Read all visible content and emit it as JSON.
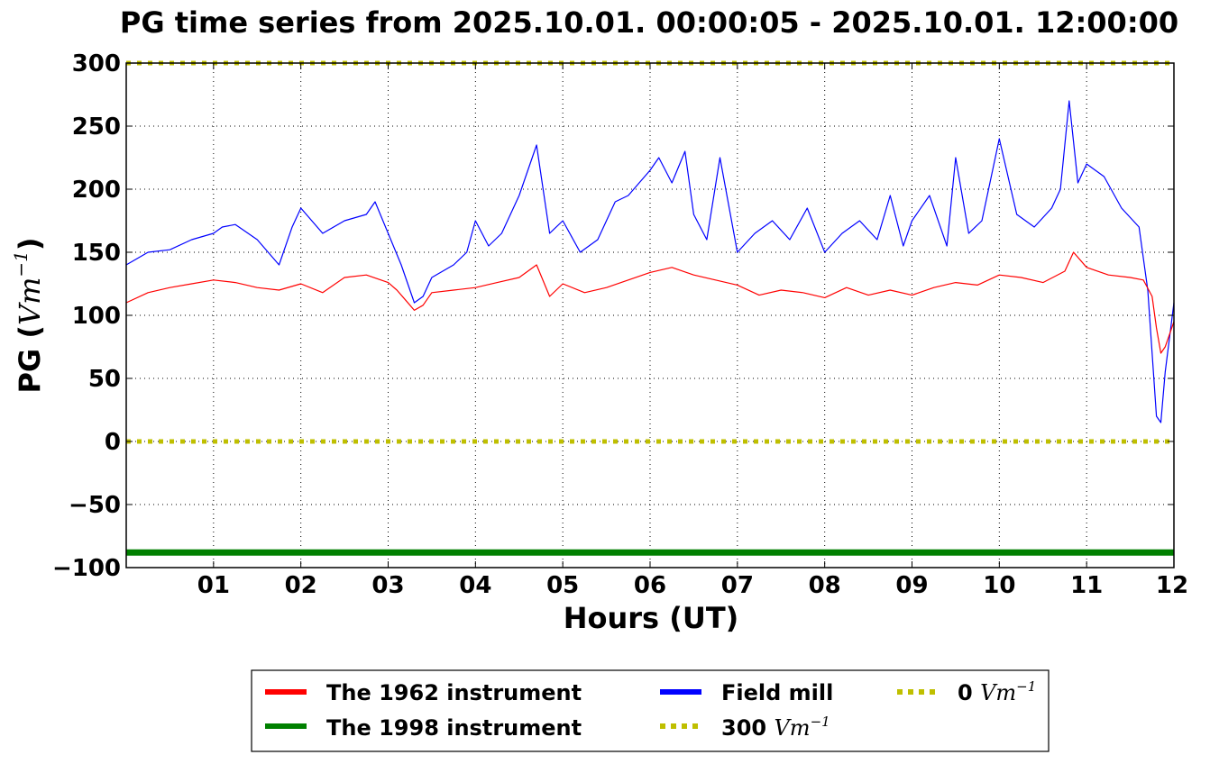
{
  "chart_data": {
    "type": "line",
    "title": "PG time series from 2025.10.01. 00:00:05 - 2025.10.01. 12:00:00",
    "xlabel": "Hours (UT)",
    "ylabel": {
      "prefix": "PG (",
      "unit": "Vm",
      "exp": "−1",
      "suffix": ")"
    },
    "xlim": [
      0,
      12
    ],
    "ylim": [
      -100,
      300
    ],
    "xticks": [
      1,
      2,
      3,
      4,
      5,
      6,
      7,
      8,
      9,
      10,
      11,
      12
    ],
    "xtick_labels": [
      "01",
      "02",
      "03",
      "04",
      "05",
      "06",
      "07",
      "08",
      "09",
      "10",
      "11",
      "12"
    ],
    "yticks": [
      300,
      250,
      200,
      150,
      100,
      50,
      0,
      -50,
      -100
    ],
    "ytick_labels": [
      "300",
      "250",
      "200",
      "150",
      "100",
      "50",
      "0",
      "−50",
      "−100"
    ],
    "grid": true,
    "legend_position": "below plot, 3 columns",
    "series": [
      {
        "name": "The 1962 instrument",
        "color": "#ff0000",
        "x": [
          0,
          0.25,
          0.5,
          0.75,
          1,
          1.25,
          1.5,
          1.75,
          2,
          2.25,
          2.5,
          2.75,
          3,
          3.1,
          3.2,
          3.3,
          3.4,
          3.5,
          3.75,
          4,
          4.25,
          4.5,
          4.7,
          4.85,
          5,
          5.25,
          5.5,
          5.75,
          6,
          6.25,
          6.5,
          6.75,
          7,
          7.25,
          7.5,
          7.75,
          8,
          8.25,
          8.5,
          8.75,
          9,
          9.25,
          9.5,
          9.75,
          10,
          10.25,
          10.5,
          10.75,
          10.85,
          11,
          11.25,
          11.5,
          11.65,
          11.75,
          11.8,
          11.85,
          11.9,
          12
        ],
        "y": [
          110,
          118,
          122,
          125,
          128,
          126,
          122,
          120,
          125,
          118,
          130,
          132,
          126,
          120,
          112,
          104,
          108,
          118,
          120,
          122,
          126,
          130,
          140,
          115,
          125,
          118,
          122,
          128,
          134,
          138,
          132,
          128,
          124,
          116,
          120,
          118,
          114,
          122,
          116,
          120,
          116,
          122,
          126,
          124,
          132,
          130,
          126,
          135,
          150,
          138,
          132,
          130,
          128,
          115,
          90,
          70,
          75,
          95
        ]
      },
      {
        "name": "The 1998 instrument",
        "color": "#008000",
        "x": [
          0,
          12
        ],
        "y": [
          -88,
          -88
        ]
      },
      {
        "name": "Field mill",
        "color": "#0000ff",
        "x": [
          0,
          0.25,
          0.5,
          0.75,
          1,
          1.1,
          1.25,
          1.5,
          1.75,
          1.9,
          2,
          2.25,
          2.5,
          2.75,
          2.85,
          3,
          3.15,
          3.3,
          3.4,
          3.5,
          3.75,
          3.9,
          4,
          4.15,
          4.3,
          4.5,
          4.7,
          4.85,
          5,
          5.2,
          5.4,
          5.6,
          5.75,
          6,
          6.1,
          6.25,
          6.4,
          6.5,
          6.65,
          6.8,
          7,
          7.2,
          7.4,
          7.6,
          7.8,
          8,
          8.2,
          8.4,
          8.6,
          8.75,
          8.9,
          9,
          9.2,
          9.4,
          9.5,
          9.65,
          9.8,
          10,
          10.2,
          10.4,
          10.6,
          10.7,
          10.8,
          10.9,
          11,
          11.2,
          11.4,
          11.6,
          11.7,
          11.75,
          11.8,
          11.85,
          11.9,
          12
        ],
        "y": [
          140,
          150,
          152,
          160,
          165,
          170,
          172,
          160,
          140,
          170,
          185,
          165,
          175,
          180,
          190,
          165,
          140,
          110,
          115,
          130,
          140,
          150,
          175,
          155,
          165,
          195,
          235,
          165,
          175,
          150,
          160,
          190,
          195,
          215,
          225,
          205,
          230,
          180,
          160,
          225,
          150,
          165,
          175,
          160,
          185,
          150,
          165,
          175,
          160,
          195,
          155,
          175,
          195,
          155,
          225,
          165,
          175,
          240,
          180,
          170,
          185,
          200,
          270,
          205,
          220,
          210,
          185,
          170,
          120,
          70,
          20,
          15,
          55,
          110
        ]
      },
      {
        "name": "300",
        "unit": "Vm",
        "exp": "−1",
        "color": "#bfbf00",
        "x": [
          0,
          12
        ],
        "y": [
          300,
          300
        ]
      },
      {
        "name": "0",
        "unit": "Vm",
        "exp": "−1",
        "color": "#bfbf00",
        "x": [
          0,
          12
        ],
        "y": [
          0,
          0
        ]
      }
    ]
  }
}
